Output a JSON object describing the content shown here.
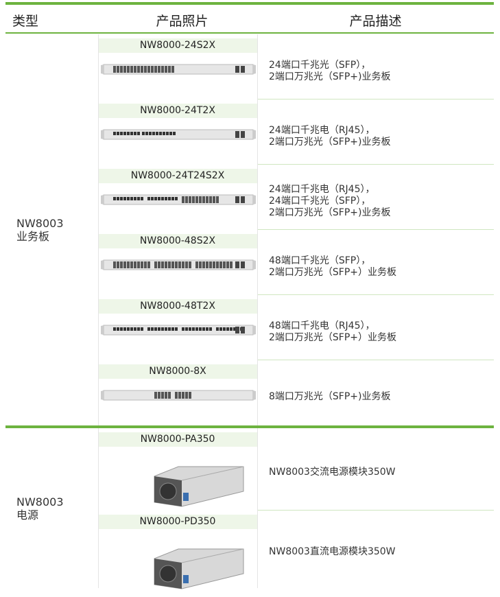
{
  "header": {
    "type": "类型",
    "photo": "产品照片",
    "description": "产品描述"
  },
  "sections": [
    {
      "type_lines": [
        "NW8003",
        "业务板"
      ],
      "products": [
        {
          "name": "NW8000-24S2X",
          "description_lines": [
            "24端口千兆光（SFP），",
            "2端口万兆光（SFP+)业务板"
          ]
        },
        {
          "name": "NW8000-24T2X",
          "description_lines": [
            "24端口千兆电（RJ45），",
            "2端口万兆光（SFP+)业务板"
          ]
        },
        {
          "name": "NW8000-24T24S2X",
          "description_lines": [
            "24端口千兆电（RJ45），",
            "24端口千兆光（SFP），",
            "2端口万兆光（SFP+)业务板"
          ]
        },
        {
          "name": "NW8000-48S2X",
          "description_lines": [
            "48端口千兆光（SFP），",
            "2端口万兆光（SFP+）业务板"
          ]
        },
        {
          "name": "NW8000-48T2X",
          "description_lines": [
            "48端口千兆电（RJ45），",
            "2端口万兆光（SFP+）业务板"
          ]
        },
        {
          "name": "NW8000-8X",
          "description_lines": [
            "8端口万兆光（SFP+)业务板"
          ]
        }
      ]
    },
    {
      "type_lines": [
        "NW8003",
        "电源"
      ],
      "products": [
        {
          "name": "NW8000-PA350",
          "description_lines": [
            "NW8003交流电源模块350W"
          ]
        },
        {
          "name": "NW8000-PD350",
          "description_lines": [
            "NW8003直流电源模块350W"
          ]
        }
      ]
    }
  ]
}
